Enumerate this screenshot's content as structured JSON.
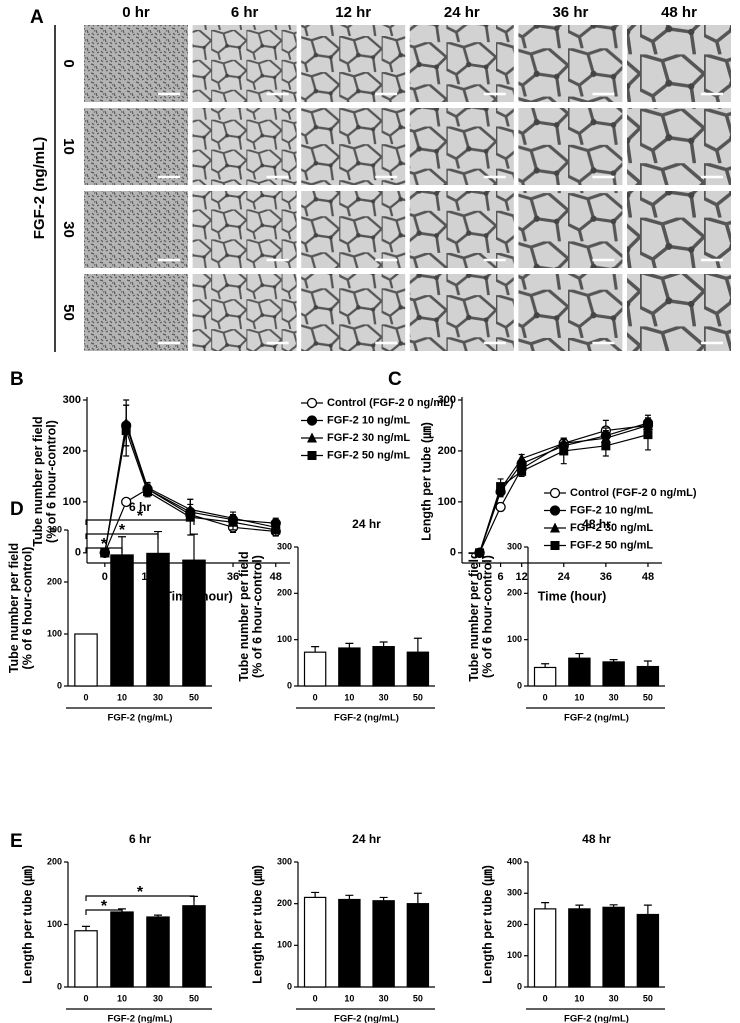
{
  "image_grid": {
    "panel": "A",
    "ylabel": "FGF-2 (ng/mL)",
    "columns": [
      "0 hr",
      "6 hr",
      "12 hr",
      "24 hr",
      "36 hr",
      "48 hr"
    ],
    "rows": [
      "0",
      "10",
      "30",
      "50"
    ]
  },
  "chart_data": [
    {
      "type": "line",
      "panel": "B",
      "ylabel": [
        "Tube number per field",
        "(% of 6 hour-control)"
      ],
      "xlabel": "Time (hour)",
      "x": [
        0,
        6,
        12,
        24,
        36,
        48
      ],
      "xlim": [
        -5,
        52
      ],
      "xticks": [
        0,
        6,
        12,
        24,
        36,
        48
      ],
      "ylim": [
        -20,
        300
      ],
      "yticks": [
        0,
        100,
        200,
        300
      ],
      "legend": "upper right",
      "series": [
        {
          "name": "Control (FGF-2 0 ng/mL)",
          "marker": "circle-open",
          "color": "#000000",
          "values": [
            0,
            100,
            125,
            75,
            50,
            42
          ],
          "errors": [
            0,
            5,
            8,
            10,
            10,
            8
          ]
        },
        {
          "name": "FGF-2 10 ng/mL",
          "marker": "circle",
          "color": "#000000",
          "values": [
            0,
            250,
            125,
            80,
            65,
            58
          ],
          "errors": [
            0,
            40,
            10,
            15,
            10,
            10
          ]
        },
        {
          "name": "FGF-2 30 ng/mL",
          "marker": "triangle",
          "color": "#000000",
          "values": [
            0,
            255,
            128,
            85,
            68,
            50
          ],
          "errors": [
            0,
            45,
            10,
            20,
            12,
            10
          ]
        },
        {
          "name": "FGF-2 50 ng/mL",
          "marker": "square",
          "color": "#000000",
          "values": [
            0,
            240,
            120,
            70,
            60,
            45
          ],
          "errors": [
            0,
            50,
            10,
            35,
            15,
            12
          ]
        }
      ]
    },
    {
      "type": "line",
      "panel": "C",
      "ylabel": [
        "Length per tube (㎛)"
      ],
      "xlabel": "Time (hour)",
      "x": [
        0,
        6,
        12,
        24,
        36,
        48
      ],
      "xlim": [
        -5,
        52
      ],
      "xticks": [
        0,
        6,
        12,
        24,
        36,
        48
      ],
      "ylim": [
        -20,
        300
      ],
      "yticks": [
        0,
        100,
        200,
        300
      ],
      "legend": "lower right",
      "series": [
        {
          "name": "Control (FGF-2 0 ng/mL)",
          "marker": "circle-open",
          "color": "#000000",
          "values": [
            0,
            90,
            165,
            215,
            240,
            250
          ],
          "errors": [
            0,
            8,
            8,
            10,
            20,
            15
          ]
        },
        {
          "name": "FGF-2 10 ng/mL",
          "marker": "circle",
          "color": "#000000",
          "values": [
            0,
            120,
            175,
            210,
            230,
            255
          ],
          "errors": [
            0,
            10,
            8,
            12,
            15,
            15
          ]
        },
        {
          "name": "FGF-2 30 ng/mL",
          "marker": "triangle",
          "color": "#000000",
          "values": [
            0,
            125,
            185,
            215,
            225,
            250
          ],
          "errors": [
            0,
            10,
            8,
            10,
            15,
            12
          ]
        },
        {
          "name": "FGF-2 50 ng/mL",
          "marker": "square",
          "color": "#000000",
          "values": [
            0,
            130,
            160,
            200,
            210,
            232
          ],
          "errors": [
            0,
            15,
            10,
            25,
            20,
            30
          ]
        }
      ]
    },
    {
      "type": "bar",
      "panel": "D",
      "title": "6 hr",
      "ylabel": [
        "Tube number per field",
        "(% of 6 hour-control)"
      ],
      "xlabel": "FGF-2 (ng/mL)",
      "categories": [
        "0",
        "10",
        "30",
        "50"
      ],
      "values": [
        100,
        252,
        255,
        242
      ],
      "errors": [
        0,
        35,
        42,
        50
      ],
      "colors": [
        "#ffffff",
        "#000000",
        "#000000",
        "#000000"
      ],
      "ylim": [
        0,
        300
      ],
      "yticks": [
        0,
        100,
        200,
        300
      ],
      "significance": [
        {
          "label": "*",
          "pair": [
            0,
            1
          ]
        },
        {
          "label": "*",
          "pair": [
            0,
            2
          ]
        },
        {
          "label": "*",
          "pair": [
            0,
            3
          ]
        }
      ]
    },
    {
      "type": "bar",
      "title": "24 hr",
      "ylabel": [
        "Tube number per field",
        "(% of 6 hour-control)"
      ],
      "xlabel": "FGF-2 (ng/mL)",
      "categories": [
        "0",
        "10",
        "30",
        "50"
      ],
      "values": [
        73,
        82,
        85,
        73
      ],
      "errors": [
        12,
        10,
        10,
        30
      ],
      "colors": [
        "#ffffff",
        "#000000",
        "#000000",
        "#000000"
      ],
      "ylim": [
        0,
        300
      ],
      "yticks": [
        0,
        100,
        200,
        300
      ]
    },
    {
      "type": "bar",
      "title": "48 hr",
      "ylabel": [
        "Tube number per field",
        "(% of 6 hour-control)"
      ],
      "xlabel": "FGF-2 (ng/mL)",
      "categories": [
        "0",
        "10",
        "30",
        "50"
      ],
      "values": [
        40,
        60,
        52,
        42
      ],
      "errors": [
        8,
        10,
        5,
        12
      ],
      "colors": [
        "#ffffff",
        "#000000",
        "#000000",
        "#000000"
      ],
      "ylim": [
        0,
        300
      ],
      "yticks": [
        0,
        100,
        200,
        300
      ]
    },
    {
      "type": "bar",
      "panel": "E",
      "title": "6 hr",
      "ylabel": [
        "Length per tube (㎛)"
      ],
      "xlabel": "FGF-2 (ng/mL)",
      "categories": [
        "0",
        "10",
        "30",
        "50"
      ],
      "values": [
        90,
        120,
        112,
        130
      ],
      "errors": [
        7,
        5,
        3,
        15
      ],
      "colors": [
        "#ffffff",
        "#000000",
        "#000000",
        "#000000"
      ],
      "ylim": [
        0,
        200
      ],
      "yticks": [
        0,
        100,
        200
      ],
      "significance": [
        {
          "label": "*",
          "pair": [
            0,
            1
          ]
        },
        {
          "label": "*",
          "pair": [
            0,
            3
          ]
        }
      ]
    },
    {
      "type": "bar",
      "title": "24 hr",
      "ylabel": [
        "Length per tube (㎛)"
      ],
      "xlabel": "FGF-2 (ng/mL)",
      "categories": [
        "0",
        "10",
        "30",
        "50"
      ],
      "values": [
        215,
        210,
        207,
        200
      ],
      "errors": [
        12,
        10,
        8,
        25
      ],
      "colors": [
        "#ffffff",
        "#000000",
        "#000000",
        "#000000"
      ],
      "ylim": [
        0,
        300
      ],
      "yticks": [
        0,
        100,
        200,
        300
      ]
    },
    {
      "type": "bar",
      "title": "48 hr",
      "ylabel": [
        "Length per tube (㎛)"
      ],
      "xlabel": "FGF-2 (ng/mL)",
      "categories": [
        "0",
        "10",
        "30",
        "50"
      ],
      "values": [
        250,
        250,
        255,
        232
      ],
      "errors": [
        20,
        12,
        8,
        30
      ],
      "colors": [
        "#ffffff",
        "#000000",
        "#000000",
        "#000000"
      ],
      "ylim": [
        0,
        400
      ],
      "yticks": [
        0,
        100,
        200,
        300,
        400
      ]
    }
  ]
}
